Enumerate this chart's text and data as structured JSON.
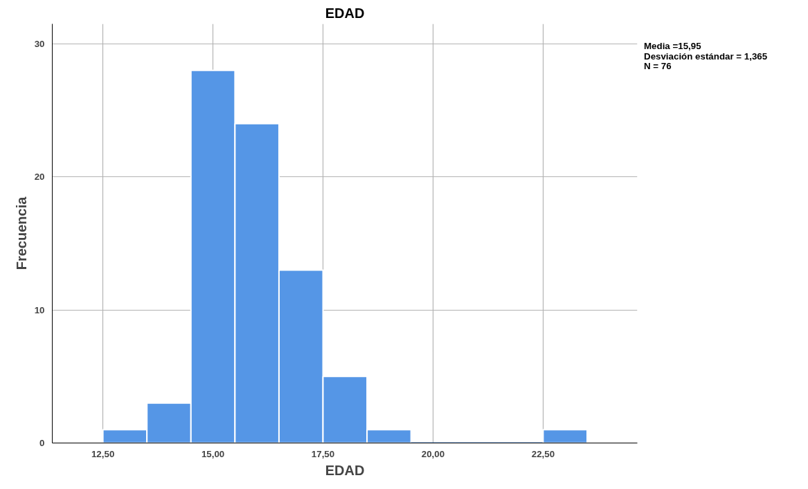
{
  "chart_data": {
    "type": "histogram",
    "title": "EDAD",
    "xlabel": "EDAD",
    "ylabel": "Frecuencia",
    "bins": [
      12.5,
      13.5,
      14.5,
      15.5,
      16.5,
      17.5,
      18.5,
      19.5,
      20.5,
      21.5,
      22.5,
      23.5
    ],
    "values": [
      1,
      3,
      28,
      24,
      13,
      5,
      1,
      0,
      0,
      0,
      1
    ],
    "color": "#5596e6",
    "xlim": [
      11.35,
      24.64
    ],
    "ylim": [
      0,
      31.5
    ],
    "xticks": [
      {
        "value": 12.5,
        "label": "12,50"
      },
      {
        "value": 15,
        "label": "15,00"
      },
      {
        "value": 17.5,
        "label": "17,50"
      },
      {
        "value": 20,
        "label": "20,00"
      },
      {
        "value": 22.5,
        "label": "22,50"
      }
    ],
    "yticks": [
      0,
      10,
      20,
      30
    ],
    "grid": true,
    "annotations": [
      "Media =15,95",
      "Desviación estándar = 1,365",
      "N = 76"
    ]
  }
}
